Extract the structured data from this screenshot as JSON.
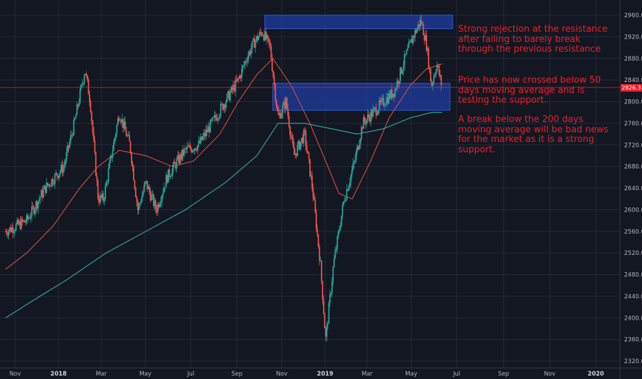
{
  "colors": {
    "background": "#131722",
    "grid": "#262a36",
    "up_candle": "#26a69a",
    "down_candle": "#ef5350",
    "ma50": "#d9533f",
    "ma200": "#2bb3a3",
    "zone_fill": "#1e3ca0",
    "zone_stroke": "#2f5bd6",
    "annotation": "#e5212b",
    "current_price_line": "#e5212b"
  },
  "chart_data": {
    "type": "candlestick",
    "title": "",
    "xlabel": "",
    "ylabel": "",
    "ylim": [
      2320,
      2960
    ],
    "grid": true,
    "y_ticks": [
      "2320.0",
      "2360.0",
      "2400.0",
      "2440.0",
      "2480.0",
      "2520.0",
      "2560.0",
      "2600.0",
      "2640.0",
      "2680.0",
      "2720.0",
      "2760.0",
      "2800.0",
      "2840.0",
      "2880.0",
      "2920.0",
      "2960.0"
    ],
    "x_ticks": [
      {
        "label": "Nov",
        "bold": false
      },
      {
        "label": "2018",
        "bold": true
      },
      {
        "label": "Mar",
        "bold": false
      },
      {
        "label": "May",
        "bold": false
      },
      {
        "label": "Jul",
        "bold": false
      },
      {
        "label": "Sep",
        "bold": false
      },
      {
        "label": "Nov",
        "bold": false
      },
      {
        "label": "2019",
        "bold": true
      },
      {
        "label": "Mar",
        "bold": false
      },
      {
        "label": "May",
        "bold": false
      },
      {
        "label": "Jul",
        "bold": false
      },
      {
        "label": "Sep",
        "bold": false
      },
      {
        "label": "Nov",
        "bold": false
      },
      {
        "label": "2020",
        "bold": true
      }
    ],
    "current_price": "2826.3",
    "price_path": [
      [
        2017.77,
        2560
      ],
      [
        2017.85,
        2580
      ],
      [
        2017.92,
        2640
      ],
      [
        2017.99,
        2680
      ],
      [
        2018.03,
        2760
      ],
      [
        2018.07,
        2860
      ],
      [
        2018.09,
        2800
      ],
      [
        2018.12,
        2620
      ],
      [
        2018.14,
        2620
      ],
      [
        2018.17,
        2700
      ],
      [
        2018.2,
        2780
      ],
      [
        2018.24,
        2720
      ],
      [
        2018.27,
        2600
      ],
      [
        2018.3,
        2650
      ],
      [
        2018.34,
        2600
      ],
      [
        2018.38,
        2660
      ],
      [
        2018.42,
        2690
      ],
      [
        2018.45,
        2710
      ],
      [
        2018.5,
        2720
      ],
      [
        2018.55,
        2760
      ],
      [
        2018.6,
        2800
      ],
      [
        2018.65,
        2840
      ],
      [
        2018.68,
        2880
      ],
      [
        2018.71,
        2910
      ],
      [
        2018.74,
        2930
      ],
      [
        2018.77,
        2900
      ],
      [
        2018.8,
        2770
      ],
      [
        2018.83,
        2800
      ],
      [
        2018.86,
        2700
      ],
      [
        2018.9,
        2740
      ],
      [
        2018.93,
        2640
      ],
      [
        2018.96,
        2500
      ],
      [
        2018.98,
        2360
      ],
      [
        2019.01,
        2500
      ],
      [
        2019.05,
        2620
      ],
      [
        2019.09,
        2690
      ],
      [
        2019.12,
        2760
      ],
      [
        2019.16,
        2780
      ],
      [
        2019.2,
        2800
      ],
      [
        2019.24,
        2820
      ],
      [
        2019.28,
        2880
      ],
      [
        2019.31,
        2920
      ],
      [
        2019.34,
        2950
      ],
      [
        2019.36,
        2910
      ],
      [
        2019.38,
        2830
      ],
      [
        2019.4,
        2870
      ],
      [
        2019.42,
        2826
      ]
    ],
    "ma50_path": [
      [
        2017.77,
        2490
      ],
      [
        2017.85,
        2520
      ],
      [
        2017.95,
        2570
      ],
      [
        2018.05,
        2640
      ],
      [
        2018.12,
        2680
      ],
      [
        2018.2,
        2710
      ],
      [
        2018.3,
        2700
      ],
      [
        2018.4,
        2680
      ],
      [
        2018.48,
        2690
      ],
      [
        2018.58,
        2740
      ],
      [
        2018.65,
        2800
      ],
      [
        2018.72,
        2850
      ],
      [
        2018.78,
        2880
      ],
      [
        2018.85,
        2830
      ],
      [
        2018.92,
        2760
      ],
      [
        2018.98,
        2690
      ],
      [
        2019.03,
        2630
      ],
      [
        2019.08,
        2620
      ],
      [
        2019.15,
        2690
      ],
      [
        2019.22,
        2770
      ],
      [
        2019.3,
        2830
      ],
      [
        2019.36,
        2860
      ],
      [
        2019.42,
        2870
      ]
    ],
    "ma200_path": [
      [
        2017.77,
        2400
      ],
      [
        2017.9,
        2440
      ],
      [
        2018.0,
        2470
      ],
      [
        2018.15,
        2520
      ],
      [
        2018.3,
        2560
      ],
      [
        2018.45,
        2600
      ],
      [
        2018.6,
        2650
      ],
      [
        2018.72,
        2700
      ],
      [
        2018.8,
        2760
      ],
      [
        2018.9,
        2760
      ],
      [
        2019.0,
        2750
      ],
      [
        2019.1,
        2740
      ],
      [
        2019.2,
        2750
      ],
      [
        2019.3,
        2770
      ],
      [
        2019.38,
        2780
      ],
      [
        2019.42,
        2780
      ]
    ],
    "zones": [
      {
        "name": "resistance",
        "x": [
          2018.75,
          2019.46
        ],
        "y": [
          2935,
          2960
        ]
      },
      {
        "name": "support",
        "x": [
          2018.78,
          2019.45
        ],
        "y": [
          2784,
          2834
        ]
      }
    ]
  },
  "annotations": {
    "rejection": "Strong rejection at the resistance after failing to barely break through the previous resistance",
    "crossed": "Price has now crossed below 50 days moving average and is testing the support.",
    "break": "A break below the 200 days moving average will be bad news for the market as it is a strong support."
  }
}
